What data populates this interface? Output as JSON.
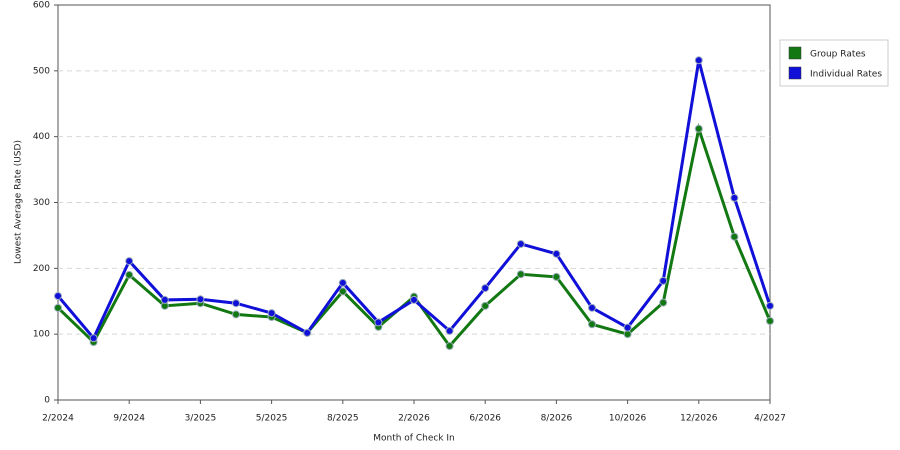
{
  "chart_data": {
    "type": "line",
    "x_label": "Month of Check In",
    "y_label": "Lowest Average Rate (USD)",
    "categories": [
      "2/2024",
      null,
      "9/2024",
      null,
      "3/2025",
      null,
      "5/2025",
      null,
      "8/2025",
      null,
      "2/2026",
      null,
      "6/2026",
      null,
      "8/2026",
      null,
      "10/2026",
      null,
      "12/2026",
      null,
      "4/2027"
    ],
    "series": [
      {
        "name": "Group Rates",
        "color": "#127812",
        "values": [
          140,
          88,
          190,
          143,
          147,
          130,
          126,
          102,
          165,
          111,
          157,
          82,
          143,
          191,
          187,
          115,
          100,
          148,
          412,
          248,
          120
        ]
      },
      {
        "name": "Individual Rates",
        "color": "#1010d8",
        "values": [
          158,
          94,
          211,
          152,
          153,
          147,
          132,
          102,
          178,
          118,
          152,
          105,
          170,
          237,
          222,
          140,
          110,
          181,
          516,
          307,
          143
        ]
      }
    ],
    "ylim": [
      0,
      600
    ],
    "yticks": [
      0,
      100,
      200,
      300,
      400,
      500,
      600
    ],
    "grid": true,
    "legend": "right"
  }
}
